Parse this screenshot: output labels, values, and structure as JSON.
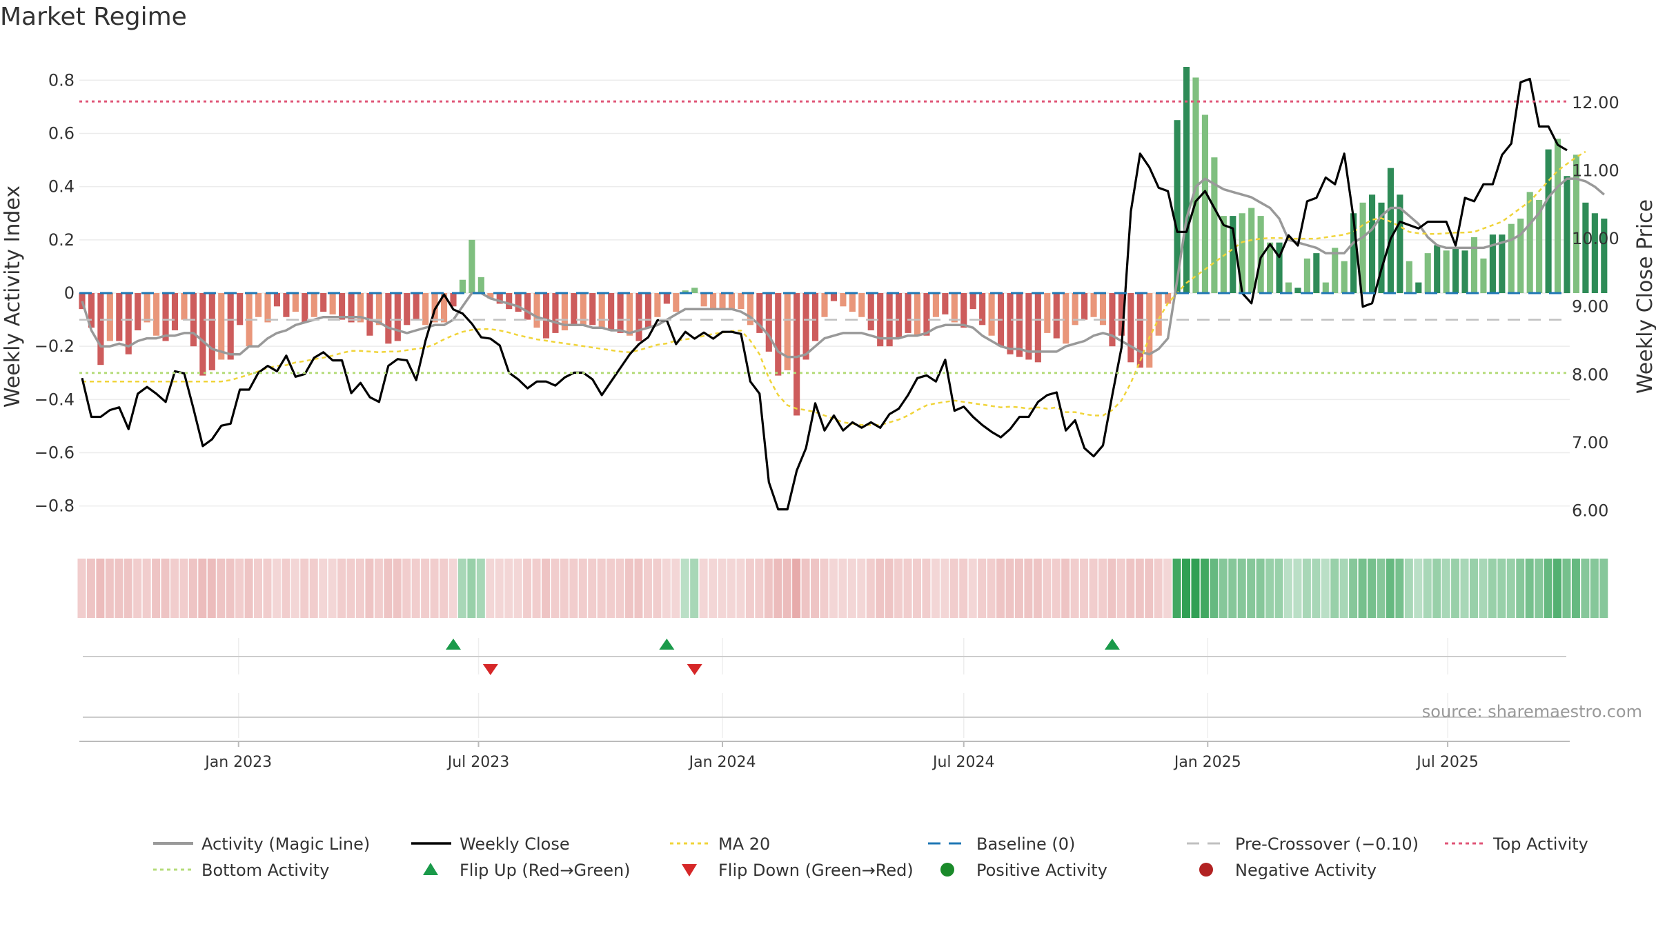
{
  "title": "Market Regime",
  "source": "source: sharemaestro.com",
  "colors": {
    "pos_dark": "#2e8b57",
    "pos_light": "#7fbf7f",
    "neg_dark": "#cd5c5c",
    "neg_light": "#e9967a",
    "magic": "#999999",
    "close": "#000000",
    "ma": "#f0d43a",
    "baseline": "#1f77b4",
    "pre": "#c0c0c0",
    "top": "#e05577",
    "bottom": "#b5dc7a",
    "flip_up": "#1a9a4a",
    "flip_down": "#d62728",
    "pos_dot": "#1a8a2a",
    "neg_dot": "#b22222"
  },
  "chart_data": {
    "type": "bar",
    "title": "Market Regime",
    "ylabel": "Weekly Activity Index",
    "ylabel_right": "Weekly Close Price",
    "ylim": [
      -0.92,
      0.92
    ],
    "ylim_right": [
      5.6,
      12.8
    ],
    "yticks": [
      "0.8",
      "0.6",
      "0.4",
      "0.2",
      "0",
      "−0.2",
      "−0.4",
      "−0.6",
      "−0.8"
    ],
    "yticks_values": [
      0.8,
      0.6,
      0.4,
      0.2,
      0,
      -0.2,
      -0.4,
      -0.6,
      -0.8
    ],
    "yticks_right": [
      "12.00",
      "11.00",
      "10.00",
      "9.00",
      "8.00",
      "7.00",
      "6.00"
    ],
    "yticks_right_values": [
      12,
      11,
      10,
      9,
      8,
      7,
      6
    ],
    "x_start": "2022-09-05",
    "x_end": "2025-09-29",
    "xticks": [
      "Jan 2023",
      "Jul 2023",
      "Jan 2024",
      "Jul 2024",
      "Jan 2025",
      "Jul 2025"
    ],
    "xticks_dates": [
      "2023-01-01",
      "2023-07-01",
      "2024-01-01",
      "2024-07-01",
      "2025-01-01",
      "2025-07-01"
    ],
    "reference_lines": {
      "baseline": 0,
      "pre_crossover": -0.1,
      "top_activity": 0.72,
      "bottom_activity": -0.3
    },
    "activity": [
      -0.06,
      -0.13,
      -0.27,
      -0.18,
      -0.18,
      -0.23,
      -0.14,
      -0.11,
      -0.16,
      -0.18,
      -0.14,
      -0.1,
      -0.2,
      -0.31,
      -0.29,
      -0.25,
      -0.25,
      -0.12,
      -0.2,
      -0.09,
      -0.11,
      -0.05,
      -0.09,
      -0.07,
      -0.11,
      -0.09,
      -0.07,
      -0.08,
      -0.1,
      -0.11,
      -0.11,
      -0.16,
      -0.12,
      -0.19,
      -0.18,
      -0.12,
      -0.1,
      -0.12,
      -0.11,
      -0.11,
      -0.05,
      0.05,
      0.2,
      0.06,
      -0.02,
      -0.04,
      -0.06,
      -0.07,
      -0.1,
      -0.13,
      -0.17,
      -0.15,
      -0.14,
      -0.12,
      -0.12,
      -0.12,
      -0.13,
      -0.14,
      -0.15,
      -0.16,
      -0.18,
      -0.13,
      -0.09,
      -0.04,
      -0.07,
      0.01,
      0.02,
      -0.05,
      -0.06,
      -0.06,
      -0.06,
      -0.06,
      -0.12,
      -0.15,
      -0.22,
      -0.31,
      -0.29,
      -0.46,
      -0.25,
      -0.18,
      -0.09,
      -0.03,
      -0.05,
      -0.07,
      -0.09,
      -0.14,
      -0.2,
      -0.2,
      -0.17,
      -0.15,
      -0.16,
      -0.16,
      -0.09,
      -0.08,
      -0.11,
      -0.13,
      -0.06,
      -0.12,
      -0.16,
      -0.2,
      -0.23,
      -0.24,
      -0.25,
      -0.26,
      -0.15,
      -0.17,
      -0.19,
      -0.12,
      -0.1,
      -0.09,
      -0.12,
      -0.2,
      -0.16,
      -0.26,
      -0.28,
      -0.28,
      -0.16,
      -0.04,
      0.65,
      0.85,
      0.81,
      0.67,
      0.51,
      0.29,
      0.29,
      0.3,
      0.32,
      0.29,
      0.19,
      0.19,
      0.04,
      0.02,
      0.13,
      0.15,
      0.04,
      0.17,
      0.12,
      0.3,
      0.34,
      0.37,
      0.34,
      0.47,
      0.37,
      0.12,
      0.04,
      0.15,
      0.18,
      0.16,
      0.17,
      0.16,
      0.21,
      0.13,
      0.22,
      0.22,
      0.26,
      0.28,
      0.38,
      0.35,
      0.54,
      0.58,
      0.44,
      0.52,
      0.34,
      0.3,
      0.28
    ],
    "activity_positive_dark": [
      118,
      119,
      124,
      129,
      131,
      133,
      137,
      139,
      140,
      141,
      142,
      144,
      146,
      148,
      149,
      152,
      153,
      158,
      160,
      162,
      163,
      164,
      165,
      166,
      169
    ],
    "activity_negative_dark": [
      0,
      1,
      2,
      4,
      5,
      6,
      9,
      10,
      12,
      13,
      14,
      16,
      17,
      21,
      22,
      24,
      26,
      28,
      29,
      31,
      33,
      34,
      35,
      36,
      40,
      41,
      45,
      46,
      47,
      48,
      50,
      51,
      53,
      55,
      57,
      58,
      60,
      61,
      63,
      73,
      74,
      75,
      77,
      78,
      79,
      81,
      85,
      86,
      87,
      88,
      89,
      91,
      93,
      95,
      96,
      97,
      99,
      100,
      101,
      102,
      103,
      105,
      108,
      111,
      112,
      113,
      114
    ],
    "magic_line": [
      -0.03,
      -0.14,
      -0.2,
      -0.2,
      -0.19,
      -0.2,
      -0.18,
      -0.17,
      -0.17,
      -0.16,
      -0.16,
      -0.15,
      -0.15,
      -0.18,
      -0.21,
      -0.22,
      -0.23,
      -0.23,
      -0.2,
      -0.2,
      -0.17,
      -0.15,
      -0.14,
      -0.12,
      -0.11,
      -0.1,
      -0.09,
      -0.09,
      -0.09,
      -0.09,
      -0.09,
      -0.1,
      -0.11,
      -0.13,
      -0.14,
      -0.15,
      -0.14,
      -0.13,
      -0.12,
      -0.12,
      -0.1,
      -0.05,
      0.0,
      0.0,
      -0.02,
      -0.03,
      -0.04,
      -0.05,
      -0.07,
      -0.09,
      -0.1,
      -0.11,
      -0.12,
      -0.12,
      -0.12,
      -0.13,
      -0.13,
      -0.14,
      -0.14,
      -0.15,
      -0.14,
      -0.13,
      -0.12,
      -0.1,
      -0.08,
      -0.06,
      -0.06,
      -0.06,
      -0.06,
      -0.06,
      -0.06,
      -0.07,
      -0.09,
      -0.12,
      -0.16,
      -0.22,
      -0.24,
      -0.24,
      -0.23,
      -0.2,
      -0.17,
      -0.16,
      -0.15,
      -0.15,
      -0.15,
      -0.16,
      -0.17,
      -0.17,
      -0.17,
      -0.16,
      -0.16,
      -0.15,
      -0.13,
      -0.12,
      -0.12,
      -0.12,
      -0.13,
      -0.16,
      -0.18,
      -0.2,
      -0.21,
      -0.21,
      -0.22,
      -0.22,
      -0.22,
      -0.22,
      -0.2,
      -0.19,
      -0.18,
      -0.16,
      -0.15,
      -0.16,
      -0.18,
      -0.2,
      -0.22,
      -0.23,
      -0.21,
      -0.17,
      0.05,
      0.28,
      0.4,
      0.43,
      0.41,
      0.39,
      0.38,
      0.37,
      0.36,
      0.34,
      0.32,
      0.28,
      0.2,
      0.19,
      0.18,
      0.17,
      0.15,
      0.15,
      0.15,
      0.19,
      0.21,
      0.24,
      0.29,
      0.32,
      0.32,
      0.29,
      0.26,
      0.21,
      0.18,
      0.17,
      0.17,
      0.17,
      0.17,
      0.17,
      0.18,
      0.19,
      0.2,
      0.22,
      0.26,
      0.3,
      0.36,
      0.4,
      0.43,
      0.43,
      0.42,
      0.4,
      0.37
    ],
    "weekly_close": [
      7.95,
      7.38,
      7.38,
      7.48,
      7.52,
      7.2,
      7.72,
      7.82,
      7.72,
      7.6,
      8.05,
      8.02,
      7.5,
      6.95,
      7.05,
      7.25,
      7.28,
      7.78,
      7.78,
      8.03,
      8.13,
      8.05,
      8.28,
      7.97,
      8.01,
      8.25,
      8.33,
      8.21,
      8.21,
      7.73,
      7.88,
      7.67,
      7.6,
      8.13,
      8.23,
      8.21,
      7.92,
      8.5,
      8.96,
      9.18,
      8.96,
      8.9,
      8.75,
      8.55,
      8.53,
      8.43,
      8.03,
      7.93,
      7.8,
      7.9,
      7.9,
      7.84,
      7.96,
      8.03,
      8.03,
      7.93,
      7.7,
      7.9,
      8.1,
      8.3,
      8.45,
      8.55,
      8.8,
      8.8,
      8.45,
      8.63,
      8.53,
      8.62,
      8.53,
      8.63,
      8.63,
      8.6,
      7.9,
      7.72,
      6.42,
      6.02,
      6.02,
      6.59,
      6.92,
      7.58,
      7.18,
      7.4,
      7.18,
      7.3,
      7.22,
      7.3,
      7.22,
      7.42,
      7.5,
      7.7,
      7.95,
      7.99,
      7.9,
      8.22,
      7.47,
      7.53,
      7.38,
      7.26,
      7.16,
      7.08,
      7.2,
      7.38,
      7.38,
      7.6,
      7.7,
      7.74,
      7.18,
      7.33,
      6.92,
      6.8,
      6.96,
      7.7,
      8.4,
      10.4,
      11.25,
      11.05,
      10.75,
      10.7,
      10.1,
      10.1,
      10.55,
      10.7,
      10.45,
      10.2,
      10.15,
      9.2,
      9.05,
      9.72,
      9.92,
      9.73,
      10.05,
      9.9,
      10.55,
      10.6,
      10.9,
      10.8,
      11.25,
      10.3,
      9.0,
      9.05,
      9.55,
      10.0,
      10.25,
      10.2,
      10.15,
      10.25,
      10.25,
      10.25,
      9.9,
      10.6,
      10.55,
      10.8,
      10.8,
      11.23,
      11.4,
      12.3,
      12.35,
      11.65,
      11.65,
      11.38,
      11.3
    ],
    "ma20": [
      7.9,
      7.9,
      7.9,
      7.9,
      7.9,
      7.9,
      7.9,
      7.9,
      7.9,
      7.9,
      7.9,
      7.9,
      7.9,
      7.9,
      7.9,
      7.9,
      7.92,
      7.96,
      8.0,
      8.05,
      8.1,
      8.13,
      8.14,
      8.18,
      8.2,
      8.23,
      8.25,
      8.28,
      8.32,
      8.35,
      8.35,
      8.34,
      8.33,
      8.34,
      8.34,
      8.36,
      8.38,
      8.4,
      8.45,
      8.52,
      8.58,
      8.63,
      8.66,
      8.67,
      8.67,
      8.65,
      8.62,
      8.58,
      8.55,
      8.52,
      8.5,
      8.48,
      8.46,
      8.44,
      8.42,
      8.4,
      8.38,
      8.36,
      8.34,
      8.33,
      8.36,
      8.4,
      8.44,
      8.46,
      8.5,
      8.52,
      8.54,
      8.57,
      8.6,
      8.62,
      8.64,
      8.65,
      8.5,
      8.3,
      7.95,
      7.7,
      7.55,
      7.5,
      7.48,
      7.45,
      7.4,
      7.35,
      7.3,
      7.28,
      7.26,
      7.26,
      7.26,
      7.3,
      7.34,
      7.4,
      7.48,
      7.55,
      7.58,
      7.6,
      7.62,
      7.6,
      7.58,
      7.56,
      7.54,
      7.52,
      7.53,
      7.52,
      7.5,
      7.52,
      7.5,
      7.52,
      7.45,
      7.45,
      7.42,
      7.4,
      7.4,
      7.48,
      7.62,
      7.88,
      8.2,
      8.55,
      8.82,
      9.05,
      9.2,
      9.35,
      9.45,
      9.55,
      9.65,
      9.75,
      9.85,
      9.95,
      9.98,
      10.0,
      10.01,
      10.01,
      10.0,
      10.0,
      10.0,
      10.0,
      10.02,
      10.04,
      10.06,
      10.1,
      10.2,
      10.28,
      10.3,
      10.25,
      10.18,
      10.1,
      10.08,
      10.07,
      10.07,
      10.08,
      10.09,
      10.09,
      10.1,
      10.15,
      10.2,
      10.25,
      10.35,
      10.45,
      10.55,
      10.7,
      10.85,
      11.0,
      11.1,
      11.2,
      11.28
    ],
    "regime_strip": [
      0.3,
      0.4,
      0.5,
      0.4,
      0.4,
      0.4,
      0.3,
      0.3,
      0.4,
      0.4,
      0.3,
      0.3,
      0.4,
      0.5,
      0.5,
      0.4,
      0.4,
      0.3,
      0.4,
      0.3,
      0.3,
      0.2,
      0.3,
      0.2,
      0.3,
      0.3,
      0.2,
      0.2,
      0.3,
      0.3,
      0.3,
      0.4,
      0.3,
      0.4,
      0.4,
      0.3,
      0.3,
      0.3,
      0.3,
      0.3,
      0.2,
      0.3,
      0.4,
      0.3,
      0.2,
      0.2,
      0.2,
      0.2,
      0.3,
      0.3,
      0.4,
      0.3,
      0.3,
      0.3,
      0.3,
      0.3,
      0.3,
      0.3,
      0.3,
      0.4,
      0.4,
      0.3,
      0.3,
      0.2,
      0.2,
      0.2,
      0.3,
      0.2,
      0.2,
      0.2,
      0.2,
      0.2,
      0.3,
      0.3,
      0.4,
      0.5,
      0.5,
      0.7,
      0.4,
      0.4,
      0.3,
      0.2,
      0.2,
      0.2,
      0.2,
      0.3,
      0.4,
      0.4,
      0.3,
      0.3,
      0.3,
      0.3,
      0.2,
      0.2,
      0.3,
      0.3,
      0.2,
      0.3,
      0.3,
      0.4,
      0.4,
      0.4,
      0.4,
      0.4,
      0.3,
      0.3,
      0.4,
      0.3,
      0.3,
      0.3,
      0.3,
      0.4,
      0.3,
      0.4,
      0.4,
      0.4,
      0.3,
      0.2,
      0.9,
      1.0,
      1.0,
      0.9,
      0.7,
      0.5,
      0.5,
      0.5,
      0.5,
      0.5,
      0.4,
      0.4,
      0.2,
      0.2,
      0.3,
      0.3,
      0.2,
      0.4,
      0.3,
      0.5,
      0.6,
      0.6,
      0.5,
      0.7,
      0.6,
      0.3,
      0.2,
      0.3,
      0.4,
      0.3,
      0.4,
      0.3,
      0.4,
      0.3,
      0.4,
      0.4,
      0.4,
      0.5,
      0.6,
      0.5,
      0.7,
      0.8,
      0.6,
      0.7,
      0.5,
      0.5,
      0.5
    ],
    "flip_up_dates": [
      "2023-06-12",
      "2023-11-20",
      "2024-10-21"
    ],
    "flip_down_dates": [
      "2023-07-10",
      "2023-12-11"
    ],
    "legend": {
      "magic": "Activity (Magic Line)",
      "close": "Weekly Close",
      "ma": "MA 20",
      "baseline": "Baseline (0)",
      "pre": "Pre-Crossover (−0.10)",
      "top": "Top Activity",
      "bottom": "Bottom Activity",
      "flip_up": "Flip Up (Red→Green)",
      "flip_down": "Flip Down (Green→Red)",
      "positive": "Positive Activity",
      "negative": "Negative Activity"
    },
    "legend_placement": "bottom",
    "grid": true
  }
}
